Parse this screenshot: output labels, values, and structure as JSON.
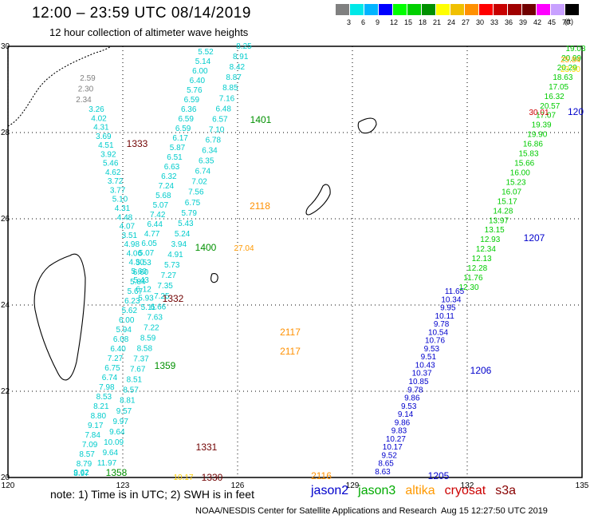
{
  "header": {
    "title": "12:00 – 23:59 UTC 08/14/2019",
    "subtitle": "12 hour collection of altimeter wave heights"
  },
  "legend": {
    "unit_label": "(ft)",
    "labels": [
      "3",
      "6",
      "9",
      "12",
      "15",
      "18",
      "21",
      "24",
      "27",
      "30",
      "33",
      "36",
      "39",
      "42",
      "45",
      "70"
    ],
    "colors": [
      "#808080",
      "#00e8e8",
      "#00b4ff",
      "#0000ff",
      "#00ff00",
      "#00d000",
      "#009000",
      "#ffff00",
      "#f0c000",
      "#ff9000",
      "#ff0000",
      "#c80000",
      "#a00000",
      "#700000",
      "#ff00ff",
      "#c8a0ff",
      "#000000"
    ]
  },
  "map": {
    "lat_labels": [
      "30",
      "28",
      "26",
      "24",
      "22",
      "20"
    ],
    "lon_labels": [
      "120",
      "123",
      "126",
      "129",
      "132",
      "135"
    ]
  },
  "tracks": [
    {
      "sat": "jason3",
      "color": "#00cccc",
      "values": [
        "5.52",
        "5.14",
        "6.00",
        "6.40",
        "5.76",
        "6.59",
        "6.36",
        "6.59",
        "6.59",
        "6.17",
        "5.87",
        "6.51",
        "6.63",
        "6.32",
        "7.24",
        "5.68",
        "5.07",
        "7.42",
        "6.44",
        "4.77",
        "6.05",
        "5.07",
        "5.53",
        "6.60",
        "5.84",
        "5.67",
        "6.23",
        "5.62",
        "6.00",
        "5.94",
        "6.08",
        "6.40",
        "7.27",
        "6.75",
        "6.74",
        "7.98",
        "8.53",
        "8.21",
        "8.80",
        "9.17",
        "7.84",
        "7.09",
        "8.57",
        "8.79",
        "8.97"
      ]
    },
    {
      "sat": "jason3",
      "color": "#00cccc",
      "values": [
        "8.25",
        "8.91",
        "8.42",
        "8.87",
        "8.85",
        "7.16",
        "6.48",
        "6.57",
        "7.10",
        "6.78",
        "6.34",
        "6.35",
        "6.74",
        "7.02",
        "7.56",
        "6.75",
        "5.79",
        "5.43",
        "5.24",
        "3.94",
        "4.91",
        "5.73",
        "7.27",
        "7.35",
        "7.25",
        "6.66",
        "7.63",
        "7.22",
        "8.59",
        "8.58",
        "7.37",
        "7.67",
        "8.51",
        "8.57",
        "8.81",
        "9.57",
        "9.97",
        "9.64",
        "10.09",
        "9.64",
        "11.97"
      ]
    },
    {
      "sat": "cryosat",
      "color": "#808080",
      "values": [
        "2.59",
        "2.30",
        "2.34"
      ]
    },
    {
      "sat": "jason3",
      "color": "#00cccc",
      "values": [
        "3.26",
        "4.02",
        "4.31",
        "3.69",
        "4.51",
        "3.92",
        "5.46",
        "4.62",
        "3.72",
        "3.77",
        "5.10",
        "4.31",
        "4.48",
        "4.07",
        "3.51",
        "4.98",
        "4.06",
        "4.30",
        "5.60",
        "5.43",
        "6.12",
        "5.93",
        "5.11"
      ]
    },
    {
      "sat": "jason2",
      "color": "#0000cc",
      "values": [
        "11.65",
        "10.34",
        "9.95",
        "10.11",
        "9.78",
        "10.54",
        "10.76",
        "9.53",
        "9.51",
        "10.43",
        "10.37",
        "10.85",
        "9.78",
        "9.86",
        "9.53",
        "9.14",
        "9.86",
        "9.83",
        "10.27",
        "10.17",
        "9.52",
        "8.65",
        "8.63"
      ]
    },
    {
      "sat": "jason3",
      "color": "#00cc00",
      "values": [
        "19.03",
        "20.99",
        "20.29",
        "18.63",
        "17.05",
        "16.32",
        "20.57",
        "17.07",
        "19.39",
        "19.90",
        "16.86",
        "15.83",
        "15.66",
        "16.00",
        "15.23",
        "16.07",
        "15.17",
        "14.28",
        "13.97",
        "13.15",
        "12.93",
        "12.34",
        "12.13",
        "12.28",
        "11.76",
        "12.30"
      ]
    }
  ],
  "track_extra": [
    {
      "text": "25.84",
      "color": "#ffaa00"
    },
    {
      "text": "23.50",
      "color": "#ffdd00"
    },
    {
      "text": "30.01",
      "color": "#cc0000"
    },
    {
      "text": "27.04",
      "color": "#ff9900"
    },
    {
      "text": "10.17",
      "color": "#ffcc00"
    },
    {
      "text": "9.62",
      "color": "#00cccc"
    }
  ],
  "times": [
    {
      "text": "1401",
      "color": "#009000"
    },
    {
      "text": "1333",
      "color": "#700000"
    },
    {
      "text": "2118",
      "color": "#ff9000"
    },
    {
      "text": "1400",
      "color": "#009000"
    },
    {
      "text": "1207",
      "color": "#0000cc"
    },
    {
      "text": "1332",
      "color": "#700000"
    },
    {
      "text": "2117",
      "color": "#ff9000"
    },
    {
      "text": "2117",
      "color": "#ff9000"
    },
    {
      "text": "1359",
      "color": "#009000"
    },
    {
      "text": "1206",
      "color": "#0000cc"
    },
    {
      "text": "1331",
      "color": "#700000"
    },
    {
      "text": "1358",
      "color": "#009000"
    },
    {
      "text": "1330",
      "color": "#700000"
    },
    {
      "text": "2116",
      "color": "#ff9000"
    },
    {
      "text": "1205",
      "color": "#0000cc"
    },
    {
      "text": "120",
      "color": "#0000cc"
    }
  ],
  "footer": {
    "note": "note: 1) Time is in UTC; 2) SWH is in feet",
    "satellites": [
      {
        "name": "jason2",
        "color": "#0000cc"
      },
      {
        "name": "jason3",
        "color": "#00aa00"
      },
      {
        "name": "altika",
        "color": "#ff9900"
      },
      {
        "name": "cryosat",
        "color": "#cc0000"
      },
      {
        "name": "s3a",
        "color": "#880000"
      }
    ],
    "credit": "NOAA/NESDIS Center for Satellite Applications and Research",
    "timestamp": "Aug 15 12:27:50 UTC 2019"
  }
}
